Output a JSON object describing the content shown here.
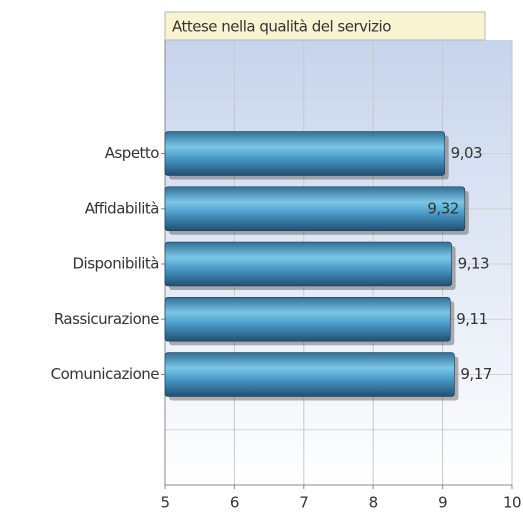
{
  "chart_data": {
    "type": "bar",
    "orientation": "horizontal",
    "title": "Attese nella qualità del servizio",
    "categories": [
      "Aspetto",
      "Affidabilità",
      "Disponibilità",
      "Rassicurazione",
      "Comunicazione"
    ],
    "values": [
      9.03,
      9.32,
      9.13,
      9.11,
      9.17
    ],
    "value_labels": [
      "9,03",
      "9,32",
      "9,13",
      "9,11",
      "9,17"
    ],
    "color": "#4a9cc8",
    "xlim": [
      5,
      10
    ],
    "xticks": [
      5,
      6,
      7,
      8,
      9,
      10
    ],
    "grid": true
  }
}
